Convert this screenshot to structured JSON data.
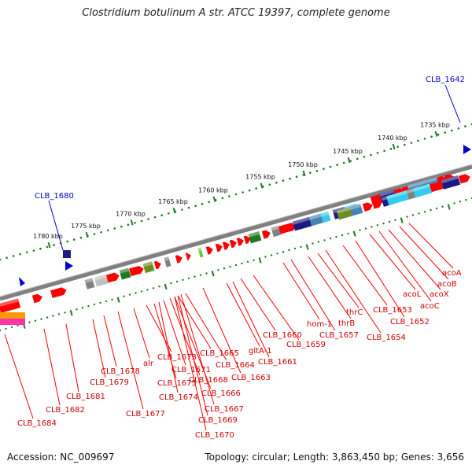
{
  "title": "Clostridium botulinum A str. ATCC 19397, complete genome",
  "footer": {
    "accession": "Accession: NC_009697",
    "stats": "Topology: circular; Length: 3,863,450 bp; Genes: 3,656"
  },
  "colors": {
    "backbone": "#808080",
    "gene_forward": "#ff0000",
    "gene_reverse": "#ff0000",
    "label_line": "#ff0000",
    "label_text": "#cc0000",
    "callout": "#0000cc",
    "tick": "#1f7a1f",
    "scale_dot": "#1f7a1f"
  },
  "scale_labels": [
    "1780 kbp",
    "1775 kbp",
    "1770 kbp",
    "1765 kbp",
    "1760 kbp",
    "1755 kbp",
    "1750 kbp",
    "1745 kbp",
    "1740 kbp",
    "1735 kbp"
  ],
  "callouts": [
    "CLB_1680",
    "CLB_1642"
  ],
  "gene_labels": [
    "CLB_1684",
    "CLB_1682",
    "CLB_1681",
    "CLB_1679",
    "CLB_1678",
    "CLB_1677",
    "alr",
    "CLB_1673",
    "CLB_1675",
    "CLB_1674",
    "CLB_1671",
    "CLB_1668",
    "CLB_1665",
    "CLB_1664",
    "CLB_1666",
    "CLB_1667",
    "CLB_1669",
    "CLB_1670",
    "CLB_1663",
    "gltA-1",
    "CLB_1661",
    "CLB_1660",
    "CLB_1659",
    "hom-1",
    "CLB_1657",
    "thrB",
    "thrC",
    "CLB_1654",
    "CLB_1653",
    "CLB_1652",
    "acoL",
    "acoC",
    "acoX",
    "acoB",
    "acoA"
  ]
}
